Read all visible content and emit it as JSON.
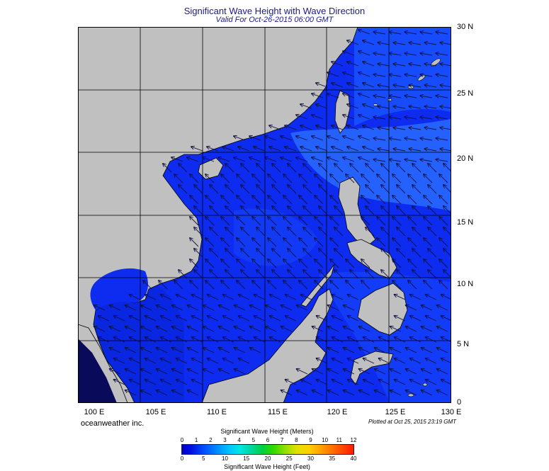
{
  "title": "Significant Wave Height with Wave Direction",
  "subtitle": "Valid For Oct-26-2015 06:00 GMT",
  "credit": "oceanweather inc.",
  "plotted": "Plotted at Oct 25, 2015 23:19 GMT",
  "lon_labels": [
    "100 E",
    "105 E",
    "110 E",
    "115 E",
    "120 E",
    "125 E",
    "130 E"
  ],
  "lat_labels": [
    "30 N",
    "25 N",
    "20 N",
    "15 N",
    "10 N",
    "5 N",
    "0"
  ],
  "colorbar": {
    "title_meters": "Significant Wave Height (Meters)",
    "title_feet": "Significant Wave Height (Feet)",
    "meters": [
      "0",
      "1",
      "2",
      "3",
      "4",
      "5",
      "6",
      "7",
      "8",
      "9",
      "10",
      "11",
      "12"
    ],
    "feet": [
      "0",
      "5",
      "10",
      "15",
      "20",
      "25",
      "30",
      "35",
      "40"
    ]
  },
  "colors": {
    "land": "#c0c0c0",
    "sea_base": "#1030f0",
    "sea_light": "#2070ff",
    "title": "#1a1a8c"
  },
  "wave_direction": "from northeast"
}
